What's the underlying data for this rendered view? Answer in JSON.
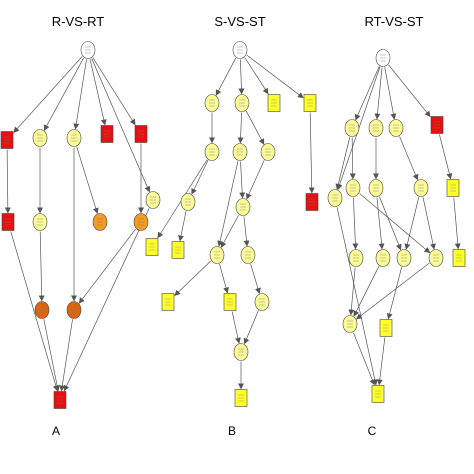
{
  "panels": [
    {
      "id": "A",
      "title": "R-VS-RT",
      "letter": "A"
    },
    {
      "id": "B",
      "title": "S-VS-ST",
      "letter": "B"
    },
    {
      "id": "C",
      "title": "RT-VS-ST",
      "letter": "C"
    }
  ],
  "colors": {
    "white": "#ffffff",
    "yellow": "#fafa96",
    "bright_yellow": "#ffff2a",
    "orange": "#f59a23",
    "dark_orange": "#e0640e",
    "red": "#e81010",
    "edge": "#555555"
  }
}
